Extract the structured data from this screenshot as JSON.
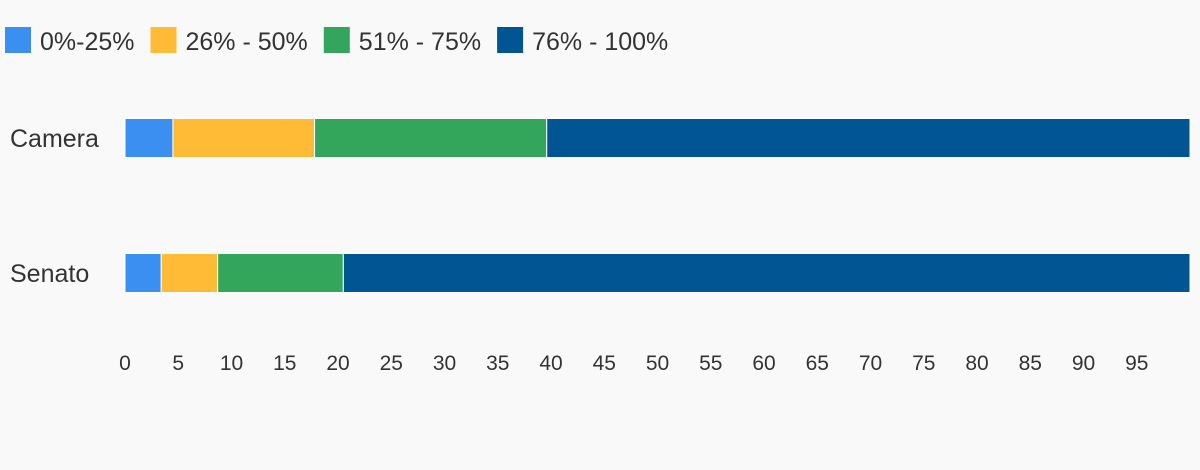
{
  "chart_data": {
    "type": "bar",
    "orientation": "horizontal",
    "stacked": true,
    "title": "",
    "xlabel": "",
    "ylabel": "",
    "categories": [
      "Camera",
      "Senato"
    ],
    "series": [
      {
        "name": "0%-25%",
        "color": "#3a8ff0",
        "values": [
          4.5,
          3.4
        ]
      },
      {
        "name": "26% - 50%",
        "color": "#ffba36",
        "values": [
          13.3,
          5.3
        ]
      },
      {
        "name": "51% - 75%",
        "color": "#34a65b",
        "values": [
          21.8,
          11.8
        ]
      },
      {
        "name": "76% - 100%",
        "color": "#015592",
        "values": [
          60.4,
          79.5
        ]
      }
    ],
    "xlim": [
      0,
      100
    ],
    "xticks": [
      0,
      5,
      10,
      15,
      20,
      25,
      30,
      35,
      40,
      45,
      50,
      55,
      60,
      65,
      70,
      75,
      80,
      85,
      90,
      95
    ],
    "grid": false,
    "legend_position": "top-left"
  }
}
